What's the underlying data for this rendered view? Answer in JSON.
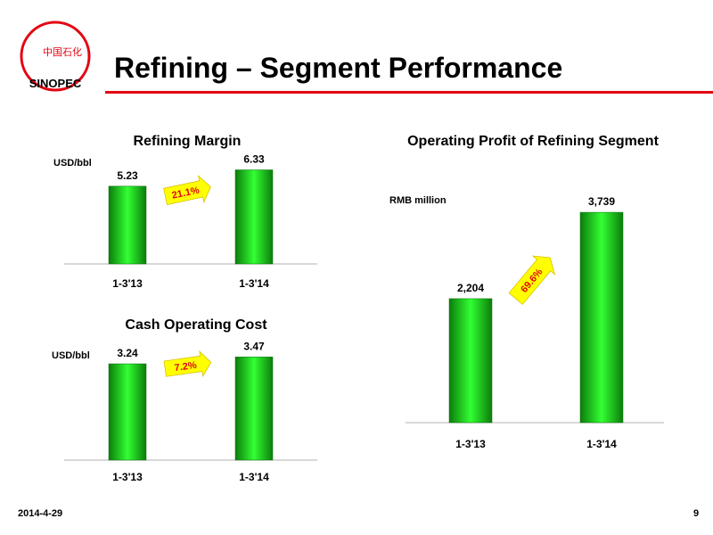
{
  "header": {
    "title": "Refining – Segment Performance",
    "logo": {
      "chinese_text": "中国石化",
      "wordmark": "SINOPEC"
    }
  },
  "footer": {
    "date": "2014-4-29",
    "page": "9"
  },
  "colors": {
    "bar": "#1ec31e",
    "accent_red": "#e30613",
    "arrow_fill": "#ffff00"
  },
  "chart_data": [
    {
      "id": "refining_margin",
      "type": "bar",
      "title": "Refining Margin",
      "unit_label": "USD/bbl",
      "categories": [
        "1-3'13",
        "1-3'14"
      ],
      "values": [
        5.23,
        6.33
      ],
      "value_labels": [
        "5.23",
        "6.33"
      ],
      "ylim": [
        0,
        7.8
      ],
      "change_label": "21.1%"
    },
    {
      "id": "cash_operating_cost",
      "type": "bar",
      "title": "Cash Operating Cost",
      "unit_label": "USD/bbl",
      "categories": [
        "1-3'13",
        "1-3'14"
      ],
      "values": [
        3.24,
        3.47
      ],
      "value_labels": [
        "3.24",
        "3.47"
      ],
      "ylim": [
        0,
        3.9
      ],
      "change_label": "7.2%"
    },
    {
      "id": "operating_profit",
      "type": "bar",
      "title": "Operating Profit of Refining Segment",
      "unit_label": "RMB million",
      "categories": [
        "1-3'13",
        "1-3'14"
      ],
      "values": [
        2204,
        3739
      ],
      "value_labels": [
        "2,204",
        "3,739"
      ],
      "ylim": [
        0,
        4200
      ],
      "change_label": "69.6%"
    }
  ]
}
